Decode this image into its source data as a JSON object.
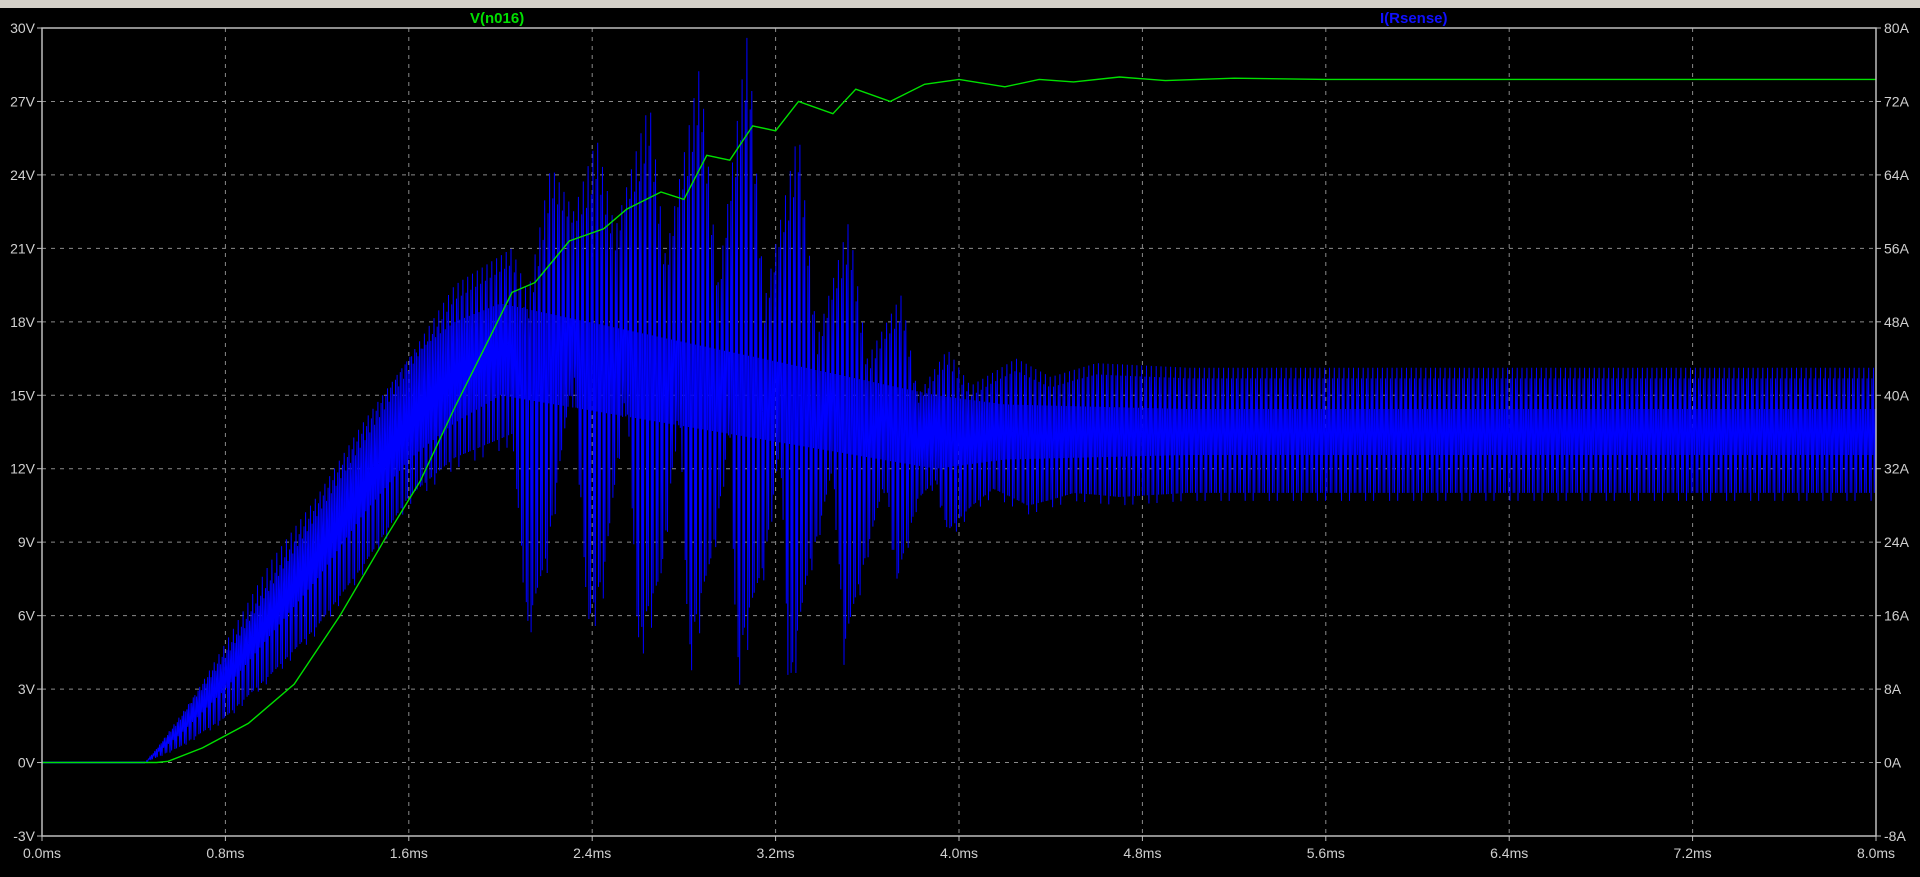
{
  "chart_data": {
    "type": "line",
    "xlabel_unit": "ms",
    "xlim": [
      0.0,
      8.0
    ],
    "x_ticks": [
      "0.0ms",
      "0.8ms",
      "1.6ms",
      "2.4ms",
      "3.2ms",
      "4.0ms",
      "4.8ms",
      "5.6ms",
      "6.4ms",
      "7.2ms",
      "8.0ms"
    ],
    "y_left": {
      "range": [
        -3,
        30
      ],
      "ticks": [
        "-3V",
        "0V",
        "3V",
        "6V",
        "9V",
        "12V",
        "15V",
        "18V",
        "21V",
        "24V",
        "27V",
        "30V"
      ]
    },
    "y_right": {
      "range": [
        -8,
        80
      ],
      "ticks": [
        "-8A",
        "0A",
        "8A",
        "16A",
        "24A",
        "32A",
        "40A",
        "48A",
        "56A",
        "64A",
        "72A",
        "80A"
      ]
    },
    "grid": true,
    "series": [
      {
        "name": "V(n016)",
        "axis": "left",
        "color": "#00e000",
        "points": [
          [
            0,
            0
          ],
          [
            0.5,
            0
          ],
          [
            0.55,
            0.05
          ],
          [
            0.7,
            0.6
          ],
          [
            0.9,
            1.6
          ],
          [
            1.1,
            3.2
          ],
          [
            1.3,
            6.0
          ],
          [
            1.5,
            9.2
          ],
          [
            1.65,
            11.5
          ],
          [
            1.8,
            14.5
          ],
          [
            1.95,
            17.3
          ],
          [
            2.05,
            19.2
          ],
          [
            2.15,
            19.6
          ],
          [
            2.3,
            21.3
          ],
          [
            2.45,
            21.8
          ],
          [
            2.55,
            22.6
          ],
          [
            2.7,
            23.3
          ],
          [
            2.8,
            23.0
          ],
          [
            2.9,
            24.8
          ],
          [
            3.0,
            24.6
          ],
          [
            3.1,
            26.0
          ],
          [
            3.2,
            25.8
          ],
          [
            3.3,
            27.0
          ],
          [
            3.45,
            26.5
          ],
          [
            3.55,
            27.5
          ],
          [
            3.7,
            27.0
          ],
          [
            3.85,
            27.7
          ],
          [
            4.0,
            27.9
          ],
          [
            4.2,
            27.6
          ],
          [
            4.35,
            27.9
          ],
          [
            4.5,
            27.8
          ],
          [
            4.7,
            28.0
          ],
          [
            4.9,
            27.85
          ],
          [
            5.2,
            27.95
          ],
          [
            5.6,
            27.9
          ],
          [
            6.0,
            27.9
          ],
          [
            6.4,
            27.9
          ],
          [
            7.2,
            27.9
          ],
          [
            8.0,
            27.9
          ]
        ]
      },
      {
        "name": "I(Rsense)",
        "axis": "right",
        "color": "#0000ff",
        "lower_envelope": [
          [
            0.0,
            0
          ],
          [
            0.45,
            0
          ],
          [
            0.5,
            0.5
          ],
          [
            0.6,
            1.5
          ],
          [
            0.8,
            4.5
          ],
          [
            1.0,
            9.0
          ],
          [
            1.2,
            14.0
          ],
          [
            1.4,
            20.5
          ],
          [
            1.6,
            28.0
          ],
          [
            1.8,
            32.0
          ],
          [
            2.05,
            34.5
          ],
          [
            2.12,
            13.0
          ],
          [
            2.2,
            20.0
          ],
          [
            2.32,
            42.0
          ],
          [
            2.38,
            12.0
          ],
          [
            2.45,
            18.0
          ],
          [
            2.55,
            40.0
          ],
          [
            2.6,
            10.0
          ],
          [
            2.7,
            18.0
          ],
          [
            2.78,
            38.0
          ],
          [
            2.82,
            8.5
          ],
          [
            2.92,
            20.0
          ],
          [
            3.0,
            35.0
          ],
          [
            3.03,
            7.0
          ],
          [
            3.15,
            20.0
          ],
          [
            3.22,
            33.0
          ],
          [
            3.26,
            5.0
          ],
          [
            3.35,
            20.0
          ],
          [
            3.45,
            31.0
          ],
          [
            3.5,
            10.0
          ],
          [
            3.6,
            22.0
          ],
          [
            3.68,
            30.0
          ],
          [
            3.73,
            18.0
          ],
          [
            3.82,
            28.0
          ],
          [
            3.9,
            30.0
          ],
          [
            3.95,
            24.0
          ],
          [
            4.05,
            27.0
          ],
          [
            4.15,
            29.0
          ],
          [
            4.3,
            27.0
          ],
          [
            4.5,
            28.5
          ],
          [
            4.7,
            28.0
          ],
          [
            5.0,
            28.5
          ],
          [
            6.0,
            28.5
          ],
          [
            8.0,
            28.5
          ]
        ],
        "upper_envelope": [
          [
            0.0,
            0
          ],
          [
            0.45,
            0
          ],
          [
            0.5,
            1.5
          ],
          [
            0.6,
            5.0
          ],
          [
            0.8,
            12.0
          ],
          [
            1.0,
            20.0
          ],
          [
            1.2,
            28.0
          ],
          [
            1.4,
            36.0
          ],
          [
            1.6,
            44.0
          ],
          [
            1.8,
            52.0
          ],
          [
            2.05,
            56.0
          ],
          [
            2.12,
            51.0
          ],
          [
            2.22,
            65.0
          ],
          [
            2.32,
            60.0
          ],
          [
            2.42,
            68.0
          ],
          [
            2.5,
            58.0
          ],
          [
            2.65,
            72.0
          ],
          [
            2.72,
            55.0
          ],
          [
            2.87,
            76.0
          ],
          [
            2.95,
            52.0
          ],
          [
            3.08,
            80.0
          ],
          [
            3.15,
            50.0
          ],
          [
            3.3,
            69.0
          ],
          [
            3.38,
            46.0
          ],
          [
            3.52,
            59.0
          ],
          [
            3.6,
            44.0
          ],
          [
            3.75,
            51.0
          ],
          [
            3.82,
            40.0
          ],
          [
            3.95,
            45.0
          ],
          [
            4.05,
            41.0
          ],
          [
            4.25,
            44.0
          ],
          [
            4.4,
            42.0
          ],
          [
            4.6,
            43.5
          ],
          [
            5.0,
            43.0
          ],
          [
            6.0,
            43.0
          ],
          [
            8.0,
            43.0
          ]
        ],
        "dense_band": [
          [
            0.45,
            0,
            0
          ],
          [
            0.6,
            3.0,
            4.5
          ],
          [
            0.8,
            8.0,
            13.0
          ],
          [
            1.0,
            14.0,
            22.0
          ],
          [
            1.2,
            20.0,
            29.0
          ],
          [
            1.4,
            27.0,
            37.0
          ],
          [
            1.6,
            33.0,
            44.0
          ],
          [
            1.8,
            37.0,
            48.0
          ],
          [
            2.0,
            40.0,
            50.0
          ],
          [
            3.9,
            32.0,
            40.0
          ],
          [
            4.2,
            33.0,
            39.0
          ],
          [
            5.0,
            33.5,
            38.5
          ],
          [
            8.0,
            33.5,
            38.5
          ]
        ]
      }
    ]
  }
}
